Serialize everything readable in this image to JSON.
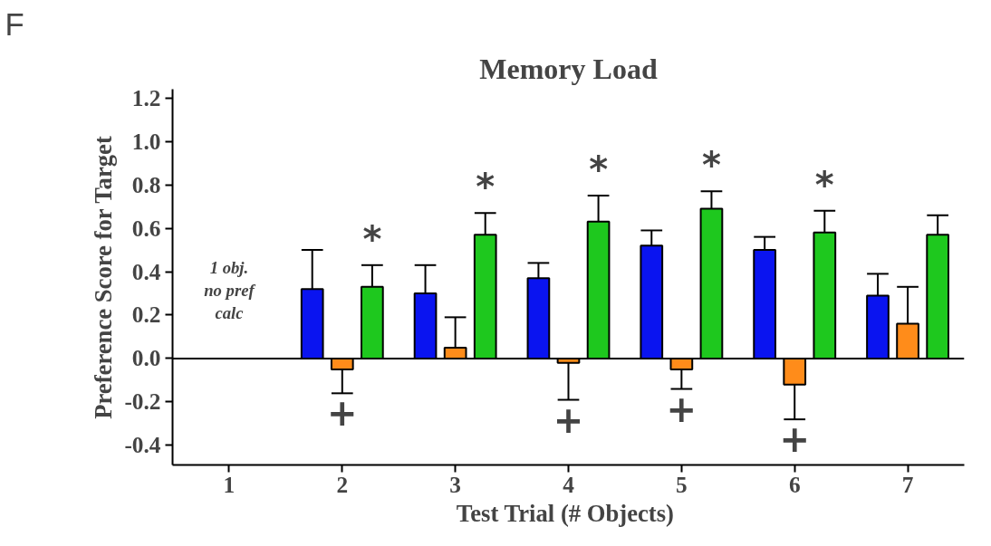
{
  "chart_data": {
    "type": "bar",
    "title": "Memory Load",
    "xlabel": "Test  Trial (# Objects)",
    "ylabel": "Preference Score for Target",
    "categories": [
      "1",
      "2",
      "3",
      "4",
      "5",
      "6",
      "7"
    ],
    "series": [
      {
        "color": "#0a14f0",
        "values": [
          null,
          0.32,
          0.3,
          0.37,
          0.52,
          0.5,
          0.29
        ],
        "errors": [
          null,
          [
            0.32,
            0.5
          ],
          [
            0.3,
            0.43
          ],
          [
            0.37,
            0.44
          ],
          [
            0.52,
            0.59
          ],
          [
            0.5,
            0.56
          ],
          [
            0.29,
            0.39
          ]
        ]
      },
      {
        "color": "#ff8c1a",
        "value_labels": [
          null,
          "+",
          null,
          "+",
          "+",
          "+",
          null
        ],
        "values": [
          null,
          -0.05,
          0.05,
          -0.02,
          -0.05,
          -0.12,
          0.16
        ],
        "errors": [
          null,
          [
            -0.16,
            -0.05
          ],
          [
            0.05,
            0.19
          ],
          [
            -0.19,
            -0.02
          ],
          [
            -0.14,
            -0.05
          ],
          [
            -0.28,
            -0.12
          ],
          [
            0.16,
            0.33
          ]
        ]
      },
      {
        "color": "#1ec81e",
        "value_labels": [
          null,
          "*",
          "*",
          "*",
          "*",
          "*",
          null
        ],
        "values": [
          null,
          0.33,
          0.57,
          0.63,
          0.69,
          0.58,
          0.57
        ],
        "errors": [
          null,
          [
            0.33,
            0.43
          ],
          [
            0.57,
            0.67
          ],
          [
            0.63,
            0.75
          ],
          [
            0.69,
            0.77
          ],
          [
            0.58,
            0.68
          ],
          [
            0.57,
            0.66
          ]
        ]
      }
    ],
    "ylim": [
      -0.49,
      1.24
    ],
    "yticks": [
      {
        "value": -0.4,
        "label": "-0.4"
      },
      {
        "value": -0.2,
        "label": "-0.2"
      },
      {
        "value": 0,
        "label": "0.0"
      },
      {
        "value": 0.2,
        "label": "0.2"
      },
      {
        "value": 0.4,
        "label": "0.4"
      },
      {
        "value": 0.6,
        "label": "0.6"
      },
      {
        "value": 0.8,
        "label": "0.8"
      },
      {
        "value": 1.0,
        "label": "1.0"
      },
      {
        "value": 1.2,
        "label": "1.2"
      }
    ],
    "ref_lines": [
      {
        "axis": "y",
        "value": 0,
        "color": "#000000"
      }
    ],
    "grid": false,
    "annotations": [
      "F",
      "1 obj.\nno pref\ncalc"
    ]
  }
}
